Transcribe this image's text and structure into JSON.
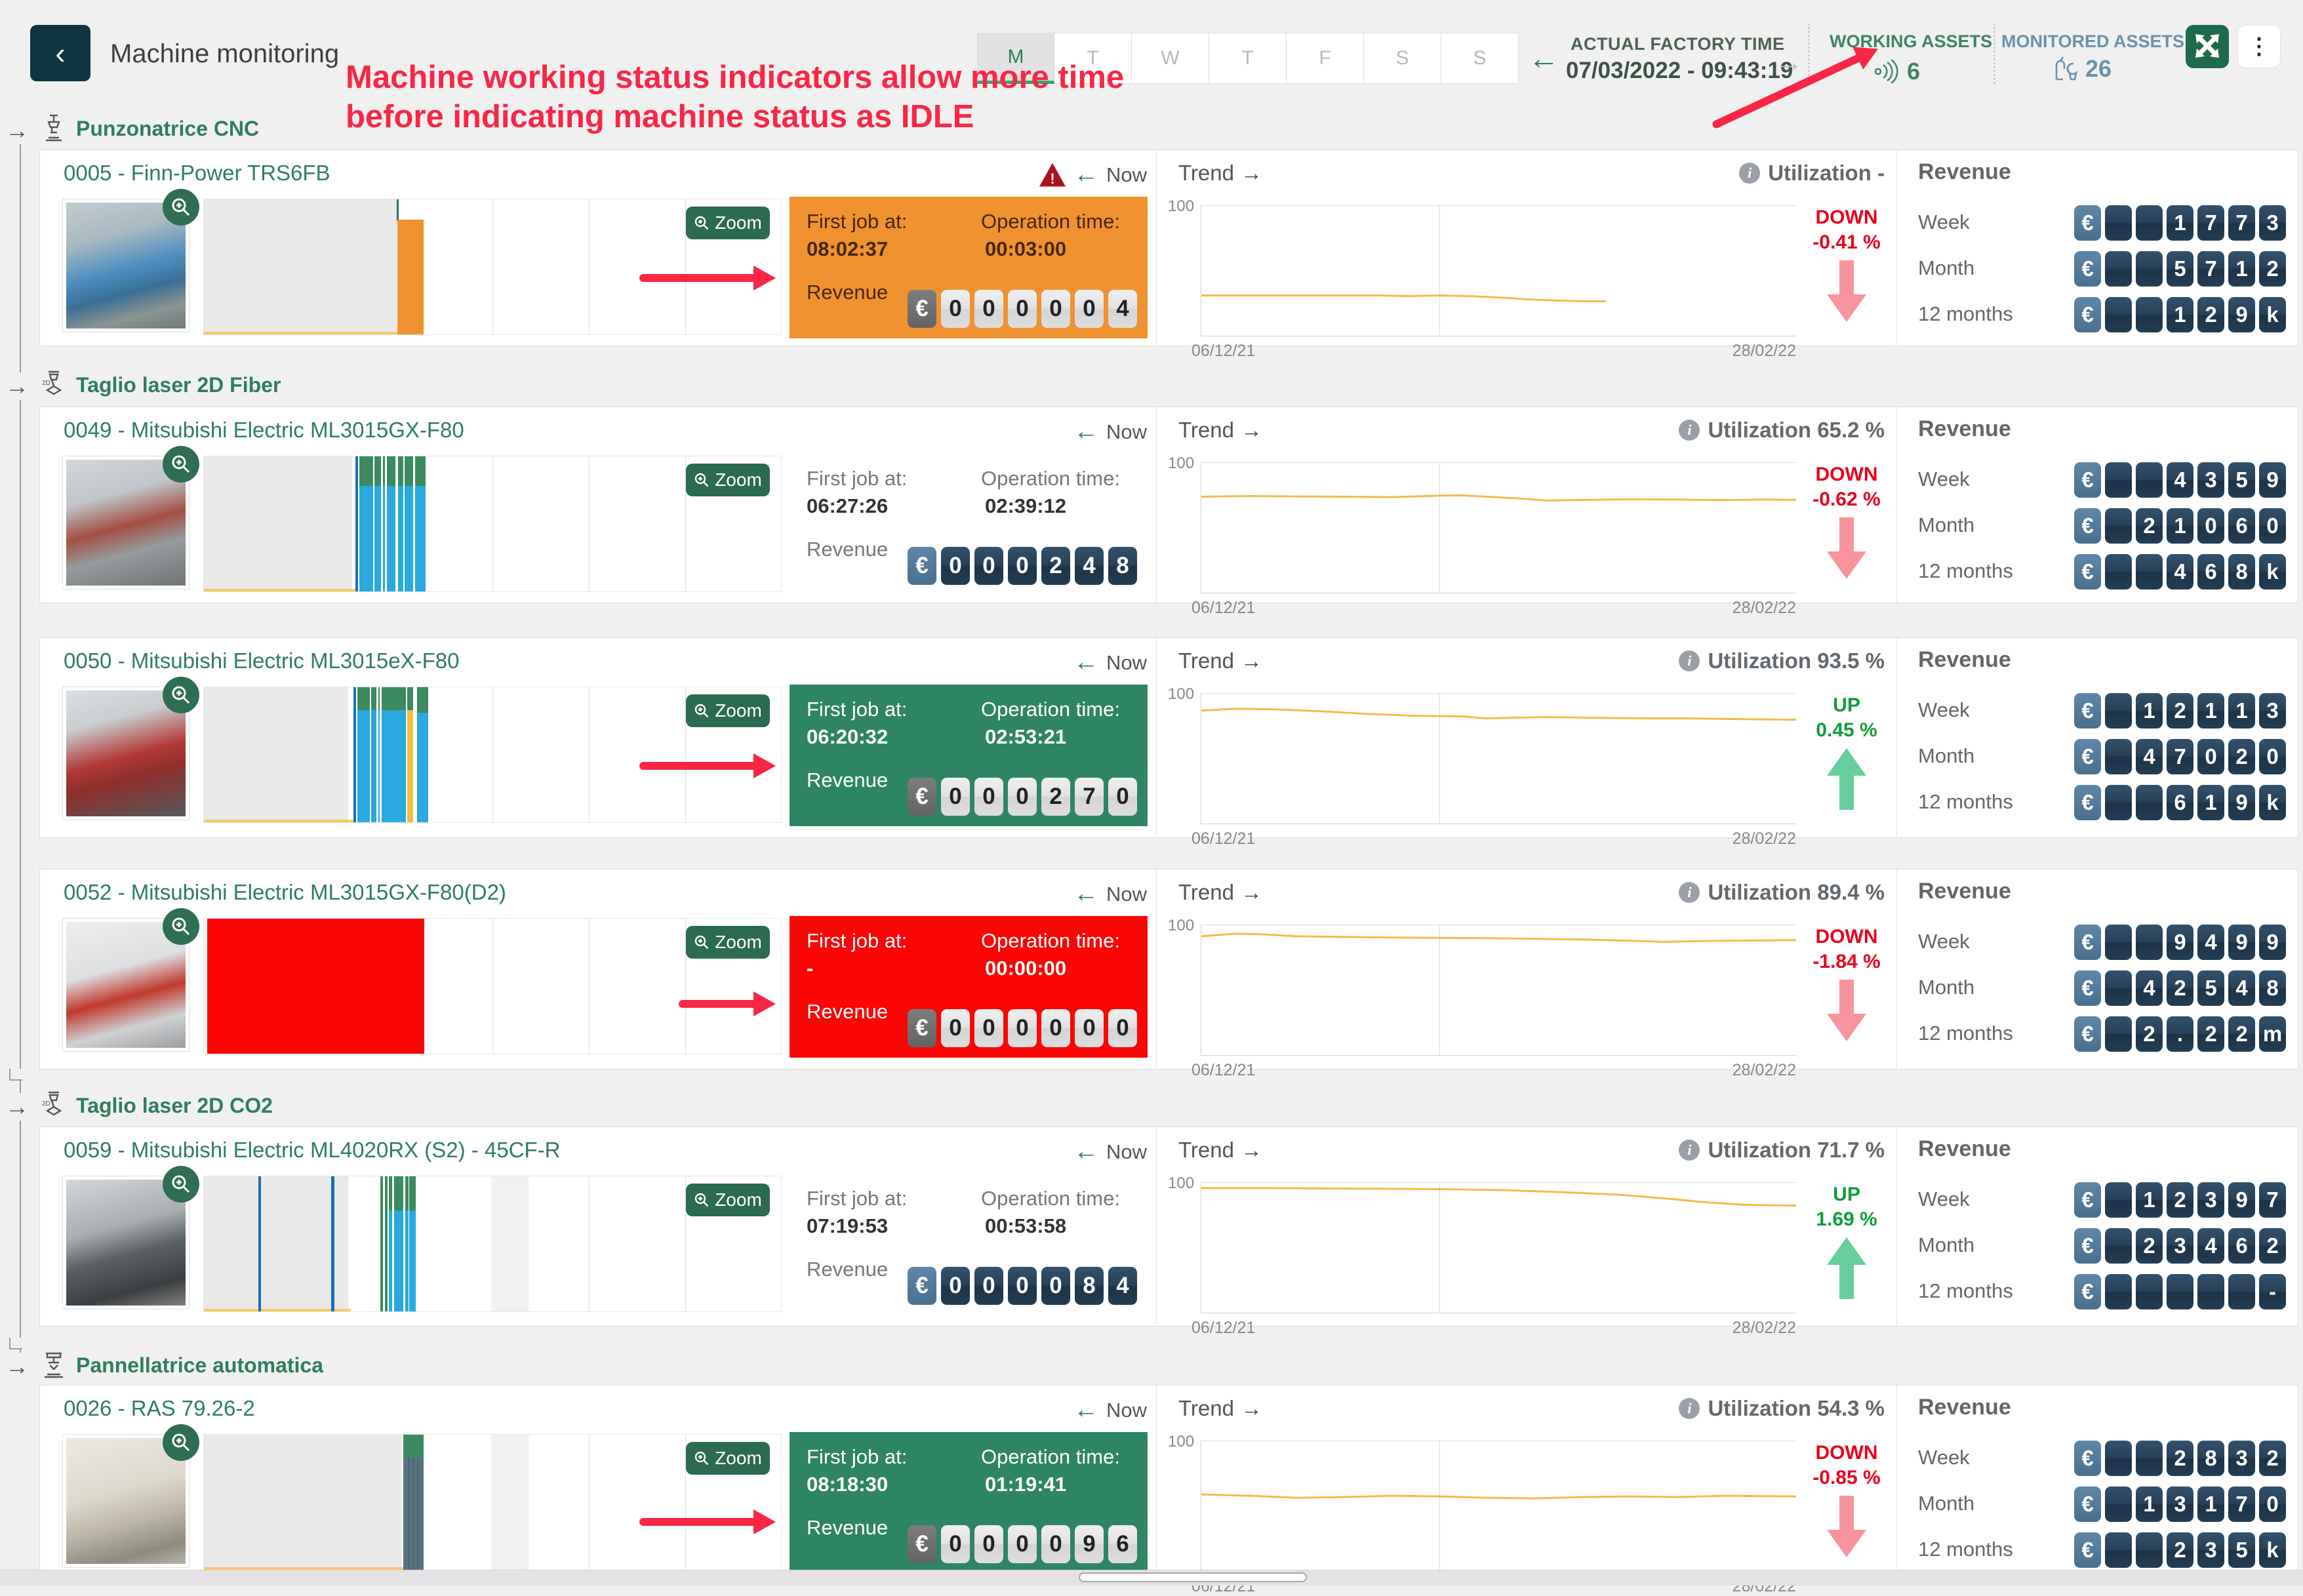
{
  "header": {
    "title": "Machine monitoring",
    "days": [
      "M",
      "T",
      "W",
      "T",
      "F",
      "S",
      "S"
    ],
    "selected_day_index": 0,
    "factory_time_label": "ACTUAL FACTORY TIME",
    "factory_time_value": "07/03/2022 - 09:43:19",
    "working_assets_label": "WORKING ASSETS",
    "working_assets_value": "6",
    "monitored_assets_label": "MONITORED ASSETS",
    "monitored_assets_value": "26"
  },
  "annotation": {
    "line1": "Machine working status indicators allow more time",
    "line2": "before indicating machine status as IDLE",
    "color": "#f92645"
  },
  "labels": {
    "now": "Now",
    "trend": "Trend",
    "revenue": "Revenue",
    "first_job": "First job at:",
    "operation_time": "Operation time:",
    "week": "Week",
    "month": "Month",
    "twelve_months": "12 months",
    "zoom": "Zoom",
    "axis_100": "100",
    "x_start": "06/12/21",
    "x_end": "28/02/22",
    "euro": "€"
  },
  "colors": {
    "accent_green": "#2f7e5b",
    "status_orange": "#f0922f",
    "status_green": "#2e8564",
    "status_red": "#fb0505",
    "trend_line": "#f2bb49",
    "down_red": "#e8001c",
    "up_green": "#0f9d3a"
  },
  "sections": [
    {
      "label": "Punzonatrice CNC"
    },
    {
      "label": "Taglio laser 2D Fiber"
    },
    {
      "label": "Taglio laser 2D CO2"
    },
    {
      "label": "Pannellatrice automatica"
    }
  ],
  "machines": [
    {
      "title": "0005 - Finn-Power TRS6FB",
      "warning": true,
      "status": "orange",
      "first_job": "08:02:37",
      "operation_time": "00:03:00",
      "counter": [
        "0",
        "0",
        "0",
        "0",
        "0",
        "4"
      ],
      "utilization": "Utilization -",
      "direction": "DOWN",
      "change": "-0.41 %",
      "revenue": {
        "week": [
          "",
          "",
          "1",
          "7",
          "7",
          "3"
        ],
        "month": [
          "",
          "",
          "5",
          "7",
          "1",
          "2"
        ],
        "year": [
          "",
          "",
          "1",
          "2",
          "9",
          "k"
        ]
      },
      "timeline": [
        [
          0,
          0,
          33.3,
          100,
          "#e9e9e9"
        ],
        [
          0,
          98.2,
          33.5,
          1.8,
          "#f6c967"
        ],
        [
          33.4,
          0,
          0.4,
          16,
          "#2a7a5e"
        ],
        [
          33.5,
          15,
          4.6,
          85,
          "#f0922f"
        ]
      ],
      "trend": [
        [
          0,
          69
        ],
        [
          10,
          69
        ],
        [
          20,
          69
        ],
        [
          30,
          69
        ],
        [
          35,
          69.5
        ],
        [
          40,
          69
        ],
        [
          45,
          69.5
        ],
        [
          50,
          70.5
        ],
        [
          55,
          72
        ],
        [
          60,
          73
        ],
        [
          65,
          73.5
        ],
        [
          68,
          73.5
        ]
      ]
    },
    {
      "title": "0049 - Mitsubishi Electric ML3015GX-F80",
      "warning": false,
      "status": "none",
      "first_job": "06:27:26",
      "operation_time": "02:39:12",
      "counter": [
        "0",
        "0",
        "0",
        "2",
        "4",
        "8"
      ],
      "utilization": "Utilization 65.2 %",
      "direction": "DOWN",
      "change": "-0.62 %",
      "revenue": {
        "week": [
          "",
          "",
          "4",
          "3",
          "5",
          "9"
        ],
        "month": [
          "",
          "2",
          "1",
          "0",
          "6",
          "0"
        ],
        "year": [
          "",
          "",
          "4",
          "6",
          "8",
          "k"
        ]
      },
      "timeline": [
        [
          0,
          0,
          25.7,
          100,
          "#e9e9e9"
        ],
        [
          0,
          98.2,
          26.4,
          1.8,
          "#f6c967"
        ],
        [
          26.2,
          0,
          0.5,
          100,
          "#1a6fb5"
        ],
        [
          26.9,
          0,
          11.5,
          100,
          "#29a9e0"
        ],
        [
          26.9,
          0,
          11.5,
          22,
          "#3c8a5f"
        ],
        [
          29.3,
          0,
          0.28,
          100,
          "#ffffff"
        ],
        [
          30.7,
          0,
          0.28,
          100,
          "#ffffff"
        ],
        [
          31.4,
          0,
          0.28,
          100,
          "#ffffff"
        ],
        [
          33.2,
          0,
          0.4,
          100,
          "#ffffff"
        ],
        [
          34.5,
          0,
          0.28,
          100,
          "#ffffff"
        ],
        [
          36.3,
          0,
          0.28,
          100,
          "#ffffff"
        ]
      ],
      "trend": [
        [
          0,
          26
        ],
        [
          8,
          25.5
        ],
        [
          16,
          25.8
        ],
        [
          24,
          26
        ],
        [
          32,
          26.3
        ],
        [
          40,
          25.2
        ],
        [
          44,
          25
        ],
        [
          48,
          26
        ],
        [
          54,
          27.5
        ],
        [
          58,
          29
        ],
        [
          64,
          28.5
        ],
        [
          72,
          28
        ],
        [
          80,
          28.2
        ],
        [
          88,
          28.6
        ],
        [
          94,
          28.2
        ],
        [
          100,
          28.4
        ]
      ]
    },
    {
      "title": "0050 - Mitsubishi Electric ML3015eX-F80",
      "warning": false,
      "status": "green",
      "first_job": "06:20:32",
      "operation_time": "02:53:21",
      "counter": [
        "0",
        "0",
        "0",
        "2",
        "7",
        "0"
      ],
      "utilization": "Utilization 93.5 %",
      "direction": "UP",
      "change": "0.45 %",
      "revenue": {
        "week": [
          "",
          "1",
          "2",
          "1",
          "1",
          "3"
        ],
        "month": [
          "",
          "4",
          "7",
          "0",
          "2",
          "0"
        ],
        "year": [
          "",
          "",
          "6",
          "1",
          "9",
          "k"
        ]
      },
      "timeline": [
        [
          0,
          0,
          25,
          100,
          "#e9e9e9"
        ],
        [
          0,
          98.2,
          25.9,
          1.8,
          "#f6c967"
        ],
        [
          25.9,
          0,
          0.5,
          100,
          "#1a6fb5"
        ],
        [
          26.6,
          0,
          8.4,
          100,
          "#29a9e0"
        ],
        [
          26.6,
          0,
          8.4,
          17,
          "#3c8a5f"
        ],
        [
          28.7,
          0,
          0.28,
          100,
          "#ffffff"
        ],
        [
          29.9,
          0,
          0.28,
          100,
          "#ffffff"
        ],
        [
          30.5,
          0,
          0.28,
          100,
          "#ffffff"
        ],
        [
          35.2,
          0,
          1.0,
          17,
          "#3c8a5f"
        ],
        [
          35.2,
          17,
          1.0,
          83,
          "#f2c23e"
        ],
        [
          36.9,
          0,
          2.0,
          19,
          "#3c8a5f"
        ],
        [
          36.9,
          19,
          2.0,
          81,
          "#29a9e0"
        ]
      ],
      "trend": [
        [
          0,
          13
        ],
        [
          6,
          11.5
        ],
        [
          12,
          12
        ],
        [
          20,
          13.5
        ],
        [
          28,
          15.5
        ],
        [
          36,
          17
        ],
        [
          44,
          17.5
        ],
        [
          48,
          19
        ],
        [
          52,
          18.5
        ],
        [
          58,
          18
        ],
        [
          66,
          18.5
        ],
        [
          74,
          19
        ],
        [
          82,
          19
        ],
        [
          90,
          19.5
        ],
        [
          100,
          20
        ]
      ]
    },
    {
      "title": "0052 - Mitsubishi Electric ML3015GX-F80(D2)",
      "warning": false,
      "status": "red",
      "first_job": "-",
      "operation_time": "00:00:00",
      "counter": [
        "0",
        "0",
        "0",
        "0",
        "0",
        "0"
      ],
      "utilization": "Utilization 89.4 %",
      "direction": "DOWN",
      "change": "-1.84 %",
      "revenue": {
        "week": [
          "",
          "",
          "9",
          "4",
          "9",
          "9"
        ],
        "month": [
          "",
          "4",
          "2",
          "5",
          "4",
          "8"
        ],
        "year": [
          "",
          "2",
          ".",
          "2",
          "2",
          "m"
        ]
      },
      "timeline": [
        [
          0.6,
          0,
          37.6,
          100,
          "#fb0505"
        ]
      ],
      "trend": [
        [
          0,
          8.5
        ],
        [
          6,
          6.5
        ],
        [
          10,
          7
        ],
        [
          16,
          8.5
        ],
        [
          24,
          9
        ],
        [
          32,
          9.5
        ],
        [
          40,
          9.7
        ],
        [
          48,
          10
        ],
        [
          56,
          10.5
        ],
        [
          64,
          11
        ],
        [
          72,
          12
        ],
        [
          78,
          12.8
        ],
        [
          84,
          12.2
        ],
        [
          92,
          11.8
        ],
        [
          100,
          11.5
        ]
      ]
    },
    {
      "title": "0059 - Mitsubishi Electric ML4020RX (S2) - 45CF-R",
      "warning": false,
      "status": "none",
      "first_job": "07:19:53",
      "operation_time": "00:53:58",
      "counter": [
        "0",
        "0",
        "0",
        "0",
        "8",
        "4"
      ],
      "utilization": "Utilization 71.7 %",
      "direction": "UP",
      "change": "1.69 %",
      "revenue": {
        "week": [
          "",
          "1",
          "2",
          "3",
          "9",
          "7"
        ],
        "month": [
          "",
          "2",
          "3",
          "4",
          "6",
          "2"
        ],
        "year": [
          "",
          "",
          "",
          "",
          "",
          "-"
        ]
      },
      "timeline": [
        [
          0,
          0,
          25,
          100,
          "#e9e9e9"
        ],
        [
          0,
          98.2,
          25.5,
          1.8,
          "#f6c967"
        ],
        [
          9.4,
          0,
          0.5,
          100,
          "#1a6fb5"
        ],
        [
          22.1,
          0,
          0.5,
          100,
          "#1a6fb5"
        ],
        [
          30.6,
          0,
          0.45,
          100,
          "#3c8a5f"
        ],
        [
          31.4,
          0,
          0.45,
          100,
          "#3c8a5f"
        ],
        [
          32.1,
          0,
          0.55,
          25,
          "#3c8a5f"
        ],
        [
          32.1,
          25,
          0.55,
          75,
          "#29a9e0"
        ],
        [
          32.9,
          0,
          1.7,
          25,
          "#3c8a5f"
        ],
        [
          32.9,
          25,
          1.7,
          75,
          "#29a9e0"
        ],
        [
          34.9,
          0,
          0.5,
          25,
          "#3c8a5f"
        ],
        [
          34.9,
          25,
          0.5,
          75,
          "#29a9e0"
        ],
        [
          35.6,
          0,
          1.1,
          25,
          "#3c8a5f"
        ],
        [
          35.6,
          25,
          1.1,
          75,
          "#29a9e0"
        ],
        [
          49.8,
          0,
          6.4,
          100,
          "#f1f1f1"
        ]
      ],
      "trend": [
        [
          0,
          4
        ],
        [
          10,
          4
        ],
        [
          20,
          4.2
        ],
        [
          30,
          4.5
        ],
        [
          40,
          4.8
        ],
        [
          50,
          5.5
        ],
        [
          60,
          7
        ],
        [
          70,
          9
        ],
        [
          78,
          12
        ],
        [
          85,
          15
        ],
        [
          92,
          17
        ],
        [
          100,
          17.5
        ]
      ]
    },
    {
      "title": "0026 - RAS 79.26-2",
      "warning": false,
      "status": "green",
      "first_job": "08:18:30",
      "operation_time": "01:19:41",
      "counter": [
        "0",
        "0",
        "0",
        "0",
        "9",
        "6"
      ],
      "utilization": "Utilization 54.3 %",
      "direction": "DOWN",
      "change": "-0.85 %",
      "revenue": {
        "week": [
          "",
          "",
          "2",
          "8",
          "3",
          "2"
        ],
        "month": [
          "",
          "1",
          "3",
          "1",
          "7",
          "0"
        ],
        "year": [
          "",
          "",
          "2",
          "3",
          "5",
          "k"
        ]
      },
      "timeline": [
        [
          0,
          0,
          34.3,
          100,
          "#e9e9e9"
        ],
        [
          0,
          98.2,
          34.5,
          1.8,
          "#f6c967"
        ],
        [
          34.6,
          0,
          3.5,
          17,
          "#3c8a5f"
        ],
        [
          34.6,
          17,
          3.5,
          83,
          "#57737f"
        ],
        [
          35.4,
          17,
          0.18,
          83,
          "#41596a"
        ],
        [
          36.2,
          17,
          0.18,
          83,
          "#41596a"
        ],
        [
          37.0,
          17,
          0.18,
          83,
          "#41596a"
        ],
        [
          49.8,
          0,
          6.4,
          100,
          "#f1f1f1"
        ]
      ],
      "trend": [
        [
          0,
          41
        ],
        [
          8,
          42
        ],
        [
          16,
          43.5
        ],
        [
          24,
          43
        ],
        [
          32,
          42
        ],
        [
          40,
          42.5
        ],
        [
          48,
          43.5
        ],
        [
          56,
          44
        ],
        [
          64,
          43
        ],
        [
          72,
          42.5
        ],
        [
          80,
          43
        ],
        [
          88,
          42
        ],
        [
          100,
          42.5
        ]
      ]
    }
  ]
}
